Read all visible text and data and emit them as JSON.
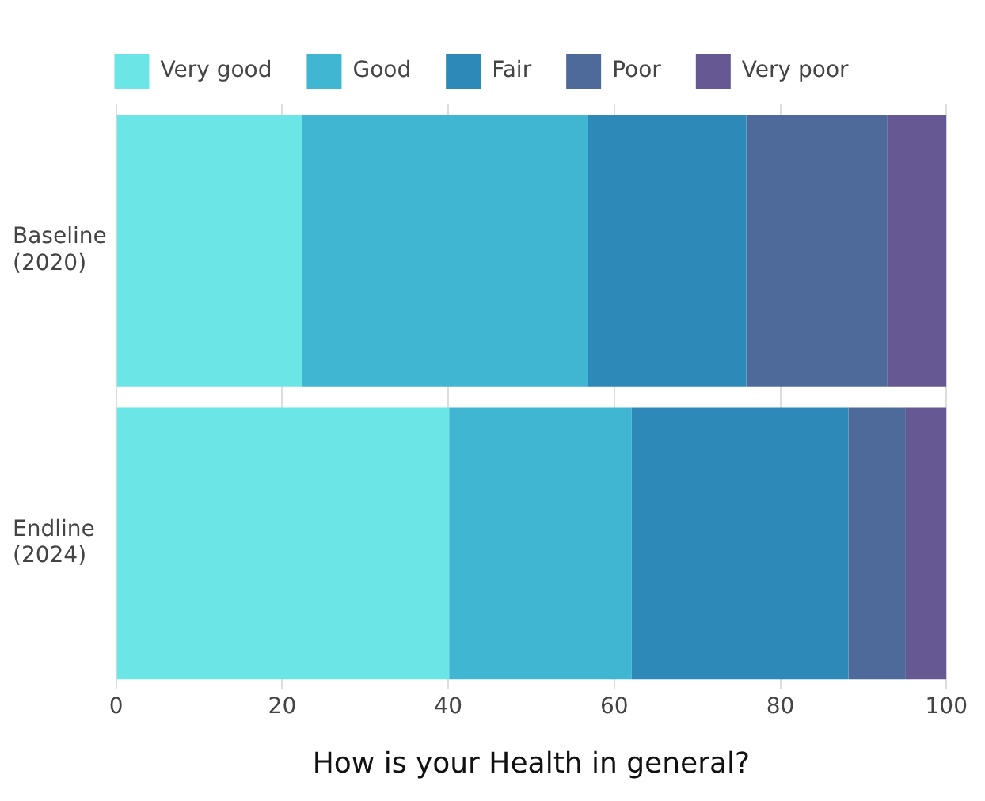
{
  "chart_data": {
    "type": "bar",
    "orientation": "horizontal",
    "stacked": true,
    "xlabel": "How is your Health in general?",
    "categories": [
      "Baseline (2020)",
      "Endline (2024)"
    ],
    "series": [
      {
        "name": "Very good",
        "color": "#6ce5e6",
        "values": [
          22.4,
          40.1
        ]
      },
      {
        "name": "Good",
        "color": "#41b6d3",
        "values": [
          34.4,
          22.0
        ]
      },
      {
        "name": "Fair",
        "color": "#2d89b8",
        "values": [
          19.1,
          26.1
        ]
      },
      {
        "name": "Poor",
        "color": "#4e6a9a",
        "values": [
          17.0,
          6.9
        ]
      },
      {
        "name": "Very poor",
        "color": "#655893",
        "values": [
          7.1,
          4.9
        ]
      }
    ],
    "xlim": [
      0,
      100
    ],
    "xticks": [
      0,
      20,
      40,
      60,
      80,
      100
    ],
    "grid": "x",
    "legend": "top"
  }
}
